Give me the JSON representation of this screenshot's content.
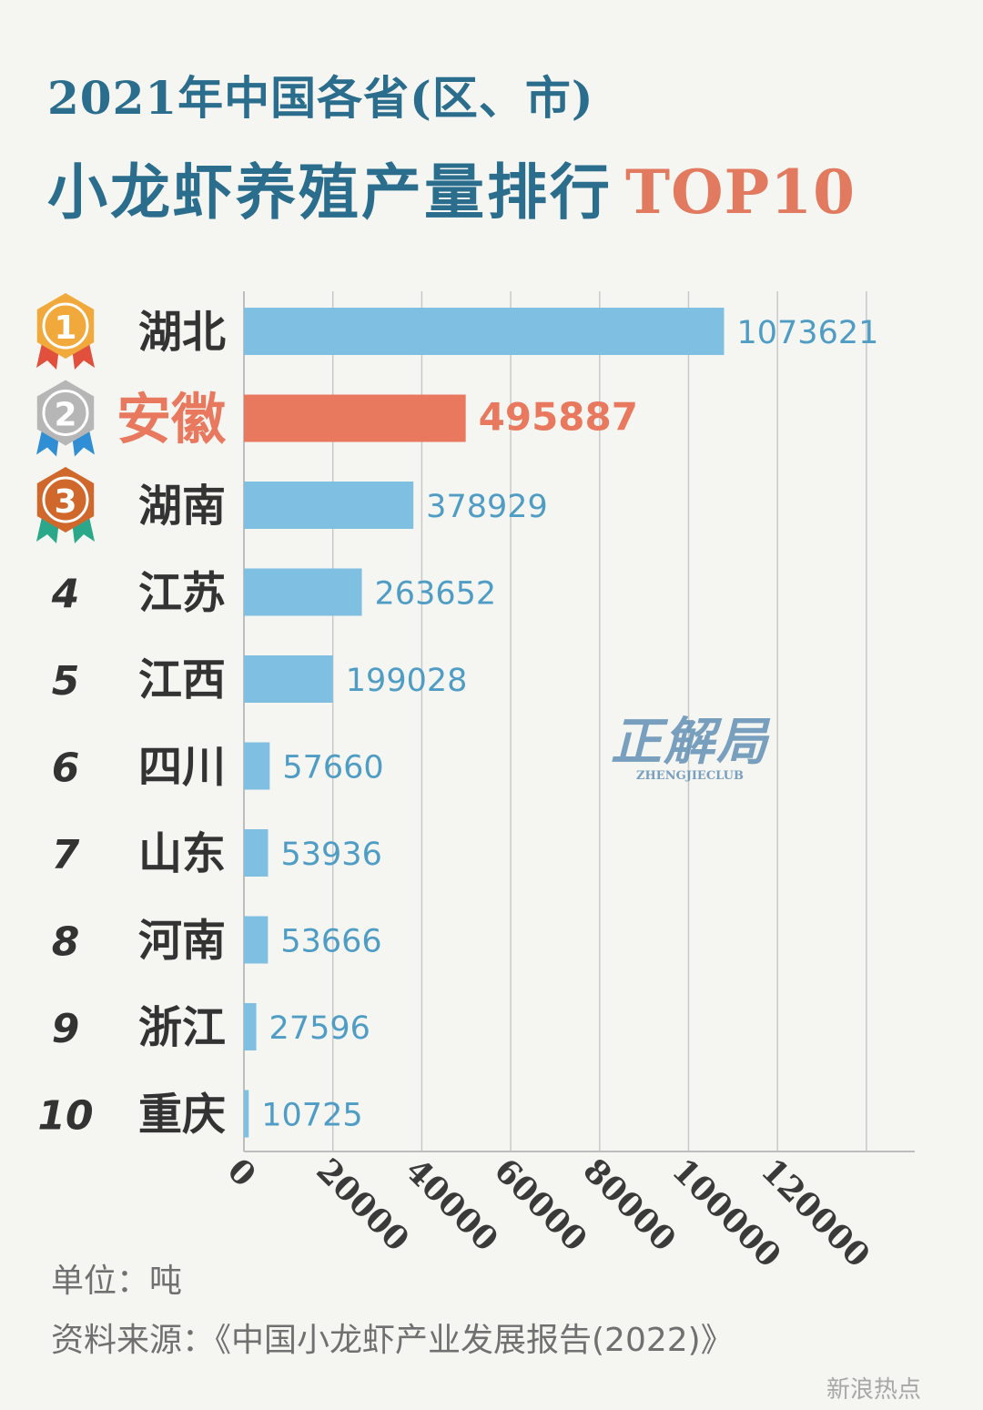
{
  "title_line1": "2021年中国各省(区、市)",
  "title_line2": "小龙虾养殖产量排行",
  "title_accent": "TOP10",
  "unit_label": "单位：吨",
  "source_label": "资料来源：《中国小龙虾产业发展报告(2022)》",
  "watermark_text": "新浪热点",
  "logo": {
    "text": "正解局",
    "sub": "ZHENGJIECLUB"
  },
  "colors": {
    "bar": "#7fbfe2",
    "highlight": "#e8795e",
    "title": "#2a6d8c",
    "value_text": "#4f9dc5",
    "grid": "#c9c9c9",
    "gold": "#f0a93a",
    "silver": "#b6b6b6",
    "bronze": "#d0672b"
  },
  "chart_data": {
    "type": "bar",
    "orientation": "horizontal",
    "categories": [
      "湖北",
      "安徽",
      "湖南",
      "江苏",
      "江西",
      "四川",
      "山东",
      "河南",
      "浙江",
      "重庆"
    ],
    "ranks": [
      "1",
      "2",
      "3",
      "4",
      "5",
      "6",
      "7",
      "8",
      "9",
      "10"
    ],
    "values": [
      1073621,
      495887,
      378929,
      263652,
      199028,
      57660,
      53936,
      53666,
      27596,
      10725
    ],
    "value_labels": [
      "1073621",
      "495887",
      "378929",
      "263652",
      "199028",
      "57660",
      "53936",
      "53666",
      "27596",
      "10725"
    ],
    "highlight_index": 1,
    "medal_ranks": 3,
    "x_ticks": [
      0,
      20000,
      40000,
      60000,
      80000,
      100000,
      120000
    ],
    "x_tick_labels": [
      "0",
      "20000",
      "40000",
      "60000",
      "80000",
      "100000",
      "120000"
    ],
    "xlim": [
      0,
      1500000
    ],
    "grid": true,
    "xlabel": "",
    "ylabel": ""
  }
}
